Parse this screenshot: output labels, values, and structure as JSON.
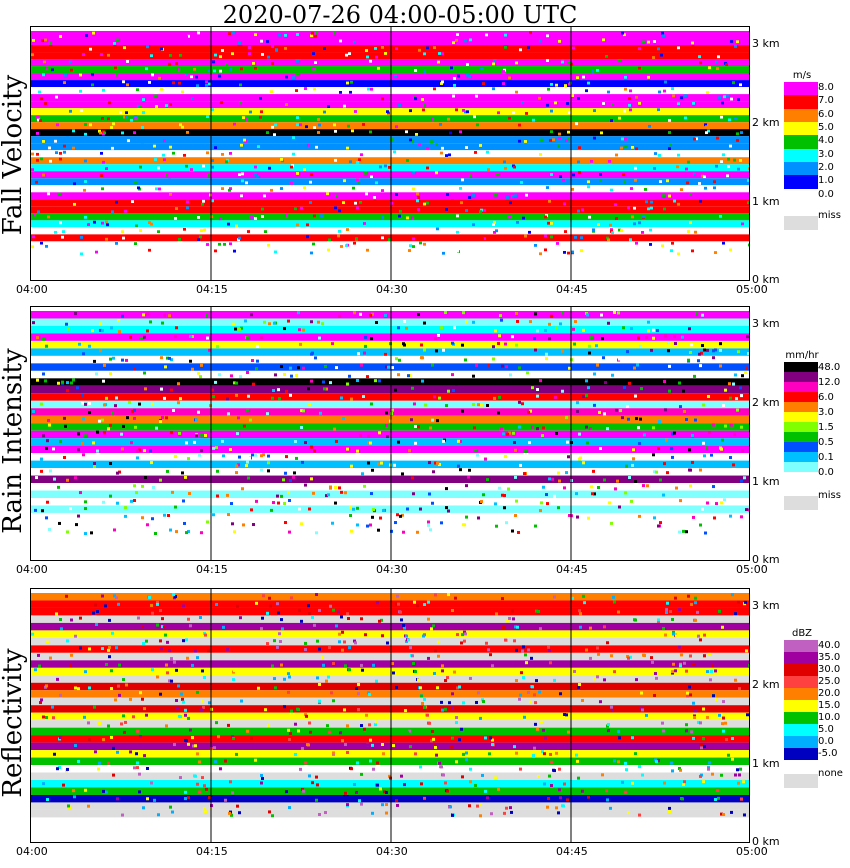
{
  "title": "2020-07-26   04:00-05:00 UTC",
  "x_ticks": [
    "04:00",
    "04:15",
    "04:30",
    "04:45",
    "05:00"
  ],
  "y_ticks": [
    "3 km",
    "2 km",
    "1 km",
    "0 km"
  ],
  "panels": [
    {
      "title": "Fall Velocity",
      "unit": "m/s",
      "legend_labels": [
        "8.0",
        "7.0",
        "6.0",
        "5.0",
        "4.0",
        "3.0",
        "2.0",
        "1.0",
        "0.0"
      ],
      "legend_colors": [
        "#ff00ff",
        "#ff0000",
        "#ff8000",
        "#ffff00",
        "#00c000",
        "#00ffff",
        "#0090ff",
        "#0000ff",
        "#ffffff"
      ],
      "miss_label": "miss",
      "miss_color": "#dddddd"
    },
    {
      "title": "Rain Intensity",
      "unit": "mm/hr",
      "legend_labels": [
        "48.0",
        "12.0",
        "6.0",
        "3.0",
        "1.5",
        "0.5",
        "0.1",
        "0.0"
      ],
      "legend_colors": [
        "#000000",
        "#800080",
        "#ff00c0",
        "#ff0000",
        "#ff8000",
        "#ffff00",
        "#80ff00",
        "#00c000",
        "#0050ff",
        "#00c0ff",
        "#80ffff",
        "#ffffff"
      ],
      "miss_label": "miss",
      "miss_color": "#dddddd"
    },
    {
      "title": "Reflectivity",
      "unit": "dBZ",
      "legend_labels": [
        "40.0",
        "35.0",
        "30.0",
        "25.0",
        "20.0",
        "15.0",
        "10.0",
        "5.0",
        "0.0",
        "-5.0"
      ],
      "legend_colors": [
        "#c060c0",
        "#a000a0",
        "#e00000",
        "#ff4040",
        "#ff8000",
        "#ffff00",
        "#00c000",
        "#00ffff",
        "#00b0ff",
        "#0000c0"
      ],
      "miss_label": "none",
      "miss_color": "#dddddd"
    }
  ],
  "chart_data": [
    {
      "type": "heatmap",
      "title": "Fall Velocity",
      "xlabel": "",
      "ylabel": "",
      "x_range": [
        "04:00",
        "05:00"
      ],
      "y_range_km": [
        0,
        3.3
      ],
      "rows_top_to_bottom": [
        "#ff00ff",
        "#ff00ff",
        "#ff0000",
        "#ff0000",
        "#ff00ff",
        "#00c000",
        "#ff00ff",
        "#0000ff",
        "#ffffff",
        "#ff00ff",
        "#ff00ff",
        "#ffff00",
        "#00c000",
        "#ff8000",
        "#000000",
        "#0090ff",
        "#0090ff",
        "#ffffff",
        "#ff8000",
        "#00ffff",
        "#ff00ff",
        "#0090ff",
        "#ffffff",
        "#ff00ff",
        "#ff0000",
        "#ff0000",
        "#00c000",
        "#00ffff",
        "#ffffff",
        "#ff0000",
        "#ffffff",
        "#ffffff"
      ]
    },
    {
      "type": "heatmap",
      "title": "Rain Intensity",
      "xlabel": "",
      "ylabel": "",
      "x_range": [
        "04:00",
        "05:00"
      ],
      "y_range_km": [
        0,
        3.3
      ],
      "rows_top_to_bottom": [
        "#ff00ff",
        "#80ffff",
        "#00ffff",
        "#ff00ff",
        "#ffff00",
        "#00c0ff",
        "#ffffff",
        "#0050ff",
        "#ffffff",
        "#000000",
        "#800080",
        "#ff0000",
        "#80ffff",
        "#ff00c0",
        "#ff8000",
        "#00c000",
        "#ff00ff",
        "#00c0ff",
        "#ff00ff",
        "#ffffff",
        "#00c0ff",
        "#ffffff",
        "#800080",
        "#ffffff",
        "#80ffff",
        "#ffffff",
        "#80ffff",
        "#ffffff",
        "#ffffff",
        "#ffffff"
      ]
    },
    {
      "type": "heatmap",
      "title": "Reflectivity",
      "xlabel": "",
      "ylabel": "",
      "x_range": [
        "04:00",
        "05:00"
      ],
      "y_range_km": [
        0,
        3.3
      ],
      "rows_top_to_bottom": [
        "#ff8000",
        "#ff0000",
        "#ff0000",
        "#dddddd",
        "#a000a0",
        "#ffff00",
        "#dddddd",
        "#ff0000",
        "#dddddd",
        "#a000a0",
        "#ffff00",
        "#dddddd",
        "#e00000",
        "#ff8000",
        "#dddddd",
        "#e00000",
        "#ffff00",
        "#dddddd",
        "#00c000",
        "#ff0000",
        "#a000a0",
        "#ffff00",
        "#00c000",
        "#ffffff",
        "#dddddd",
        "#00ffff",
        "#00c000",
        "#0000c0",
        "#dddddd",
        "#dddddd"
      ]
    }
  ]
}
